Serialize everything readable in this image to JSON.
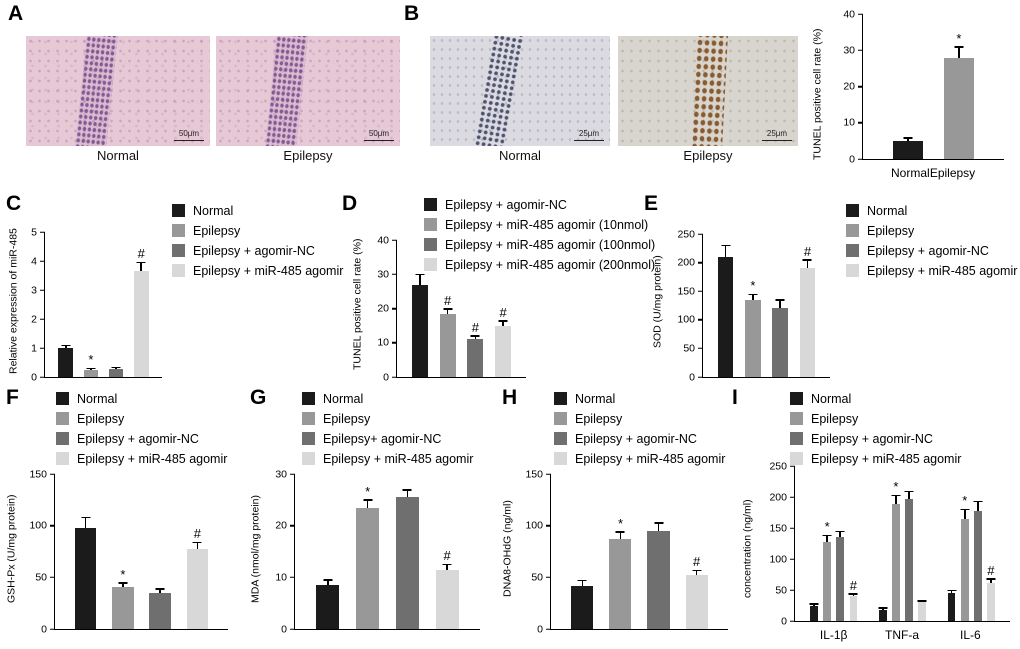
{
  "palette": {
    "black": "#1b1b1b",
    "gray": "#989898",
    "darkgray": "#6f6f6f",
    "lightgray": "#d8d8d8"
  },
  "panels": {
    "A": {
      "label": "A",
      "images": [
        {
          "caption": "Normal",
          "scale": "50μm"
        },
        {
          "caption": "Epilepsy",
          "scale": "50μm"
        }
      ]
    },
    "B": {
      "label": "B",
      "images": [
        {
          "caption": "Normal",
          "scale": "25μm"
        },
        {
          "caption": "Epilepsy",
          "scale": "25μm"
        }
      ]
    },
    "C": {
      "label": "C"
    },
    "D": {
      "label": "D"
    },
    "E": {
      "label": "E"
    },
    "F": {
      "label": "F"
    },
    "G": {
      "label": "G"
    },
    "H": {
      "label": "H"
    },
    "I": {
      "label": "I"
    }
  },
  "chart_data": [
    {
      "panel": "B",
      "type": "bar",
      "ylabel": "TUNEL positive cell rate (%)",
      "ylim": [
        0,
        40
      ],
      "yticks": [
        0,
        10,
        20,
        30,
        40
      ],
      "show_xlabels": true,
      "bars": [
        {
          "label": "Normal",
          "value": 5,
          "err": 0.8,
          "color": "black",
          "annotation": ""
        },
        {
          "label": "Epilepsy",
          "value": 28,
          "err": 3,
          "color": "gray",
          "annotation": "*"
        }
      ]
    },
    {
      "panel": "C",
      "type": "bar",
      "ylabel": "Relative expression of miR-485",
      "ylim": [
        0,
        5
      ],
      "yticks": [
        0,
        1,
        2,
        3,
        4,
        5
      ],
      "show_xlabels": false,
      "legend": [
        {
          "label": "Normal",
          "color": "black"
        },
        {
          "label": "Epilepsy",
          "color": "gray"
        },
        {
          "label": "Epilepsy + agomir-NC",
          "color": "darkgray"
        },
        {
          "label": "Epilepsy + miR-485 agomir",
          "color": "lightgray"
        }
      ],
      "bars": [
        {
          "label": "Normal",
          "value": 1.0,
          "err": 0.1,
          "color": "black",
          "annotation": ""
        },
        {
          "label": "Epilepsy",
          "value": 0.25,
          "err": 0.05,
          "color": "gray",
          "annotation": "*"
        },
        {
          "label": "Epilepsy + agomir-NC",
          "value": 0.28,
          "err": 0.05,
          "color": "darkgray",
          "annotation": ""
        },
        {
          "label": "Epilepsy + miR-485 agomir",
          "value": 3.65,
          "err": 0.3,
          "color": "lightgray",
          "annotation": "#"
        }
      ]
    },
    {
      "panel": "D",
      "type": "bar",
      "ylabel": "TUNEL positive cell rate (%)",
      "ylim": [
        0,
        40
      ],
      "yticks": [
        0,
        10,
        20,
        30,
        40
      ],
      "show_xlabels": false,
      "legend": [
        {
          "label": "Epilepsy + agomir-NC",
          "color": "black"
        },
        {
          "label": "Epilepsy + miR-485 agomir (10nmol)",
          "color": "gray"
        },
        {
          "label": "Epilepsy + miR-485 agomir (100nmol)",
          "color": "darkgray"
        },
        {
          "label": "Epilepsy + miR-485 agomir (200nmol)",
          "color": "lightgray"
        }
      ],
      "bars": [
        {
          "label": "Epilepsy + agomir-NC",
          "value": 27,
          "err": 3,
          "color": "black",
          "annotation": ""
        },
        {
          "label": "Epilepsy + miR-485 agomir (10nmol)",
          "value": 18.5,
          "err": 1.5,
          "color": "gray",
          "annotation": "#"
        },
        {
          "label": "Epilepsy + miR-485 agomir (100nmol)",
          "value": 11,
          "err": 1,
          "color": "darkgray",
          "annotation": "#"
        },
        {
          "label": "Epilepsy + miR-485 agomir (200nmol)",
          "value": 15,
          "err": 1.5,
          "color": "lightgray",
          "annotation": "#"
        }
      ]
    },
    {
      "panel": "E",
      "type": "bar",
      "ylabel": "SOD (U/mg protein)",
      "ylim": [
        0,
        250
      ],
      "yticks": [
        0,
        50,
        100,
        150,
        200,
        250
      ],
      "show_xlabels": false,
      "legend": [
        {
          "label": "Normal",
          "color": "black"
        },
        {
          "label": "Epilepsy",
          "color": "gray"
        },
        {
          "label": "Epilepsy + agomir-NC",
          "color": "darkgray"
        },
        {
          "label": "Epilepsy + miR-485 agomir",
          "color": "lightgray"
        }
      ],
      "bars": [
        {
          "label": "Normal",
          "value": 210,
          "err": 20,
          "color": "black",
          "annotation": ""
        },
        {
          "label": "Epilepsy",
          "value": 135,
          "err": 10,
          "color": "gray",
          "annotation": "*"
        },
        {
          "label": "Epilepsy + agomir-NC",
          "value": 120,
          "err": 15,
          "color": "darkgray",
          "annotation": ""
        },
        {
          "label": "Epilepsy + miR-485 agomir",
          "value": 190,
          "err": 15,
          "color": "lightgray",
          "annotation": "#"
        }
      ]
    },
    {
      "panel": "F",
      "type": "bar",
      "ylabel": "GSH-Px (U/mg protein)",
      "ylim": [
        0,
        150
      ],
      "yticks": [
        0,
        50,
        100,
        150
      ],
      "show_xlabels": false,
      "legend": [
        {
          "label": "Normal",
          "color": "black"
        },
        {
          "label": "Epilepsy",
          "color": "gray"
        },
        {
          "label": "Epilepsy + agomir-NC",
          "color": "darkgray"
        },
        {
          "label": "Epilepsy + miR-485 agomir",
          "color": "lightgray"
        }
      ],
      "bars": [
        {
          "label": "Normal",
          "value": 98,
          "err": 10,
          "color": "black",
          "annotation": ""
        },
        {
          "label": "Epilepsy",
          "value": 41,
          "err": 4,
          "color": "gray",
          "annotation": "*"
        },
        {
          "label": "Epilepsy + agomir-NC",
          "value": 35,
          "err": 4,
          "color": "darkgray",
          "annotation": ""
        },
        {
          "label": "Epilepsy + miR-485 agomir",
          "value": 77,
          "err": 7,
          "color": "lightgray",
          "annotation": "#"
        }
      ]
    },
    {
      "panel": "G",
      "type": "bar",
      "ylabel": "MDA (nmol/mg protein)",
      "ylim": [
        0,
        30
      ],
      "yticks": [
        0,
        10,
        20,
        30
      ],
      "show_xlabels": false,
      "legend": [
        {
          "label": "Normal",
          "color": "black"
        },
        {
          "label": "Epilepsy",
          "color": "gray"
        },
        {
          "label": "Epilepsy+ agomir-NC",
          "color": "darkgray"
        },
        {
          "label": "Epilepsy + miR-485 agomir",
          "color": "lightgray"
        }
      ],
      "bars": [
        {
          "label": "Normal",
          "value": 8.5,
          "err": 1,
          "color": "black",
          "annotation": ""
        },
        {
          "label": "Epilepsy",
          "value": 23.5,
          "err": 1.5,
          "color": "gray",
          "annotation": "*"
        },
        {
          "label": "Epilepsy+ agomir-NC",
          "value": 25.5,
          "err": 1.5,
          "color": "darkgray",
          "annotation": ""
        },
        {
          "label": "Epilepsy + miR-485 agomir",
          "value": 11.5,
          "err": 1,
          "color": "lightgray",
          "annotation": "#"
        }
      ]
    },
    {
      "panel": "H",
      "type": "bar",
      "ylabel": "DNA8-OHdG (ng/ml)",
      "ylim": [
        0,
        150
      ],
      "yticks": [
        0,
        50,
        100,
        150
      ],
      "show_xlabels": false,
      "legend": [
        {
          "label": "Normal",
          "color": "black"
        },
        {
          "label": "Epilepsy",
          "color": "gray"
        },
        {
          "label": "Epilepsy + agomir-NC",
          "color": "darkgray"
        },
        {
          "label": "Epilepsy + miR-485 agomir",
          "color": "lightgray"
        }
      ],
      "bars": [
        {
          "label": "Normal",
          "value": 42,
          "err": 5,
          "color": "black",
          "annotation": ""
        },
        {
          "label": "Epilepsy",
          "value": 87,
          "err": 7,
          "color": "gray",
          "annotation": "*"
        },
        {
          "label": "Epilepsy + agomir-NC",
          "value": 95,
          "err": 8,
          "color": "darkgray",
          "annotation": ""
        },
        {
          "label": "Epilepsy + miR-485 agomir",
          "value": 52,
          "err": 5,
          "color": "lightgray",
          "annotation": "#"
        }
      ]
    },
    {
      "panel": "I",
      "type": "bar",
      "grouped": true,
      "ylabel": "concentration (ng/ml)",
      "ylim": [
        0,
        250
      ],
      "yticks": [
        0,
        50,
        100,
        150,
        200,
        250
      ],
      "show_xlabels": true,
      "categories": [
        "IL-1β",
        "TNF-a",
        "IL-6"
      ],
      "legend": [
        {
          "label": "Normal",
          "color": "black"
        },
        {
          "label": "Epilepsy",
          "color": "gray"
        },
        {
          "label": "Epilepsy + agomir-NC",
          "color": "darkgray"
        },
        {
          "label": "Epilepsy + miR-485 agomir",
          "color": "lightgray"
        }
      ],
      "series": [
        {
          "name": "Normal",
          "color": "black",
          "values": [
            25,
            18,
            45
          ],
          "errs": [
            3,
            3,
            5
          ],
          "annotations": [
            "",
            "",
            ""
          ]
        },
        {
          "name": "Epilepsy",
          "color": "gray",
          "values": [
            128,
            188,
            165
          ],
          "errs": [
            10,
            15,
            15
          ],
          "annotations": [
            "*",
            "*",
            "*"
          ]
        },
        {
          "name": "Epilepsy + agomir-NC",
          "color": "darkgray",
          "values": [
            135,
            197,
            178
          ],
          "errs": [
            10,
            12,
            15
          ],
          "annotations": [
            "",
            "",
            ""
          ]
        },
        {
          "name": "Epilepsy + miR-485 agomir",
          "color": "lightgray",
          "values": [
            40,
            30,
            62
          ],
          "errs": [
            4,
            3,
            6
          ],
          "annotations": [
            "#",
            "",
            "#"
          ]
        }
      ]
    }
  ]
}
